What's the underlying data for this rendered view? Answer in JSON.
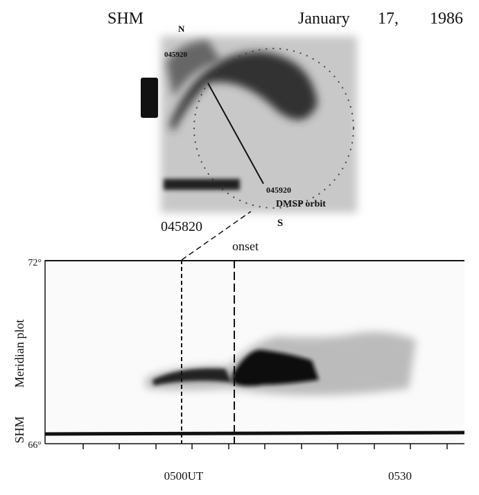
{
  "header": {
    "station": "SHM",
    "month": "January",
    "day": "17,",
    "year": "1986"
  },
  "image": {
    "north": "N",
    "south": "S",
    "time_top": "045920",
    "time_track": "045920",
    "orbit": "DMSP orbit",
    "time_bottom": "045820"
  },
  "plot": {
    "onset": "onset",
    "y_top": "72°",
    "y_bottom": "66°",
    "ylabel": "Meridian plot",
    "station": "SHM",
    "x_ticks": [
      "0500UT",
      "0530"
    ]
  }
}
